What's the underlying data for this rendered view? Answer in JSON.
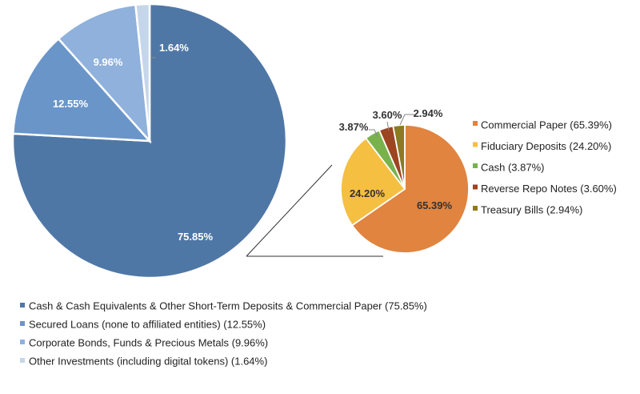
{
  "chart_data": [
    {
      "type": "pie",
      "categories": [
        "Cash & Cash Equivalents & Other Short-Term Deposits & Commercial Paper (75.85%)",
        "Secured Loans (none to affiliated entities) (12.55%)",
        "Corporate Bonds, Funds & Precious Metals (9.96%)",
        "Other Investments (including digital tokens) (1.64%)"
      ],
      "values": [
        75.85,
        12.55,
        9.96,
        1.64
      ],
      "labels": [
        "75.85%",
        "12.55%",
        "9.96%",
        "1.64%"
      ],
      "colors": [
        "#4f77a6",
        "#6a95c8",
        "#8fb1dc",
        "#c6d6ea"
      ],
      "title": "",
      "legend_position": "bottom"
    },
    {
      "type": "pie",
      "categories": [
        "Commercial Paper (65.39%)",
        "Fiduciary Deposits (24.20%)",
        "Cash (3.87%)",
        "Reverse Repo Notes (3.60%)",
        "Treasury Bills (2.94%)"
      ],
      "values": [
        65.39,
        24.2,
        3.87,
        3.6,
        2.94
      ],
      "labels": [
        "65.39%",
        "24.20%",
        "3.87%",
        "3.60%",
        "2.94%"
      ],
      "colors": [
        "#e08440",
        "#f5bf42",
        "#79b24c",
        "#9d4521",
        "#8c7a21"
      ],
      "title": "",
      "legend_position": "right"
    }
  ]
}
